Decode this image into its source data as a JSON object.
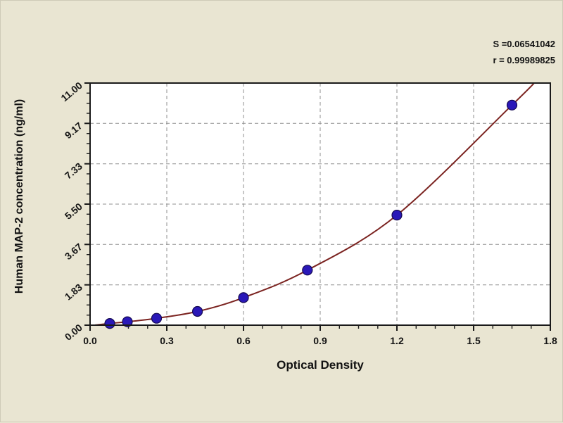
{
  "colors": {
    "background": "#e9e5d2",
    "plot_background": "#ffffff",
    "frame": "#1a1a1a",
    "grid": "#8f8f8f",
    "curve": "#7b2320",
    "point_fill": "#2a18b8",
    "point_stroke": "#150a52",
    "text": "#141414"
  },
  "chart_data": {
    "type": "scatter",
    "title": "",
    "xlabel": "Optical Density",
    "ylabel": "Human MAP-2 concentration (ng/ml)",
    "xlim": [
      0,
      1.8
    ],
    "ylim": [
      0,
      11
    ],
    "grid": "dashed-at-major-ticks",
    "legend_position": "none",
    "x_ticks": {
      "values": [
        0,
        0.3,
        0.6,
        0.9,
        1.2,
        1.5,
        1.8
      ],
      "labels": [
        "0.0",
        "0.3",
        "0.6",
        "0.9",
        "1.2",
        "1.5",
        "1.8"
      ],
      "minor_divisions": 4
    },
    "y_ticks": {
      "values": [
        0,
        1.8333,
        3.6667,
        5.5,
        7.3333,
        9.1667,
        11
      ],
      "labels": [
        "0.00",
        "1.83",
        "3.67",
        "5.50",
        "7.33",
        "9.17",
        "11.00"
      ],
      "minor_divisions": 4
    },
    "series": [
      {
        "name": "standard-points",
        "type": "scatter",
        "marker": "circle",
        "x": [
          0.077,
          0.146,
          0.26,
          0.42,
          0.6,
          0.85,
          1.2,
          1.65
        ],
        "y": [
          0.078,
          0.156,
          0.3125,
          0.625,
          1.25,
          2.5,
          5,
          10
        ]
      },
      {
        "name": "fit-curve",
        "type": "line",
        "x": [
          0.02,
          0.077,
          0.146,
          0.26,
          0.42,
          0.6,
          0.85,
          1.2,
          1.65,
          1.745
        ],
        "y": [
          0.005,
          0.078,
          0.156,
          0.3125,
          0.625,
          1.25,
          2.5,
          5,
          10,
          11.1
        ]
      }
    ],
    "annotations": [
      {
        "text": "S =0.06541042"
      },
      {
        "text": "r = 0.99989825"
      }
    ]
  }
}
